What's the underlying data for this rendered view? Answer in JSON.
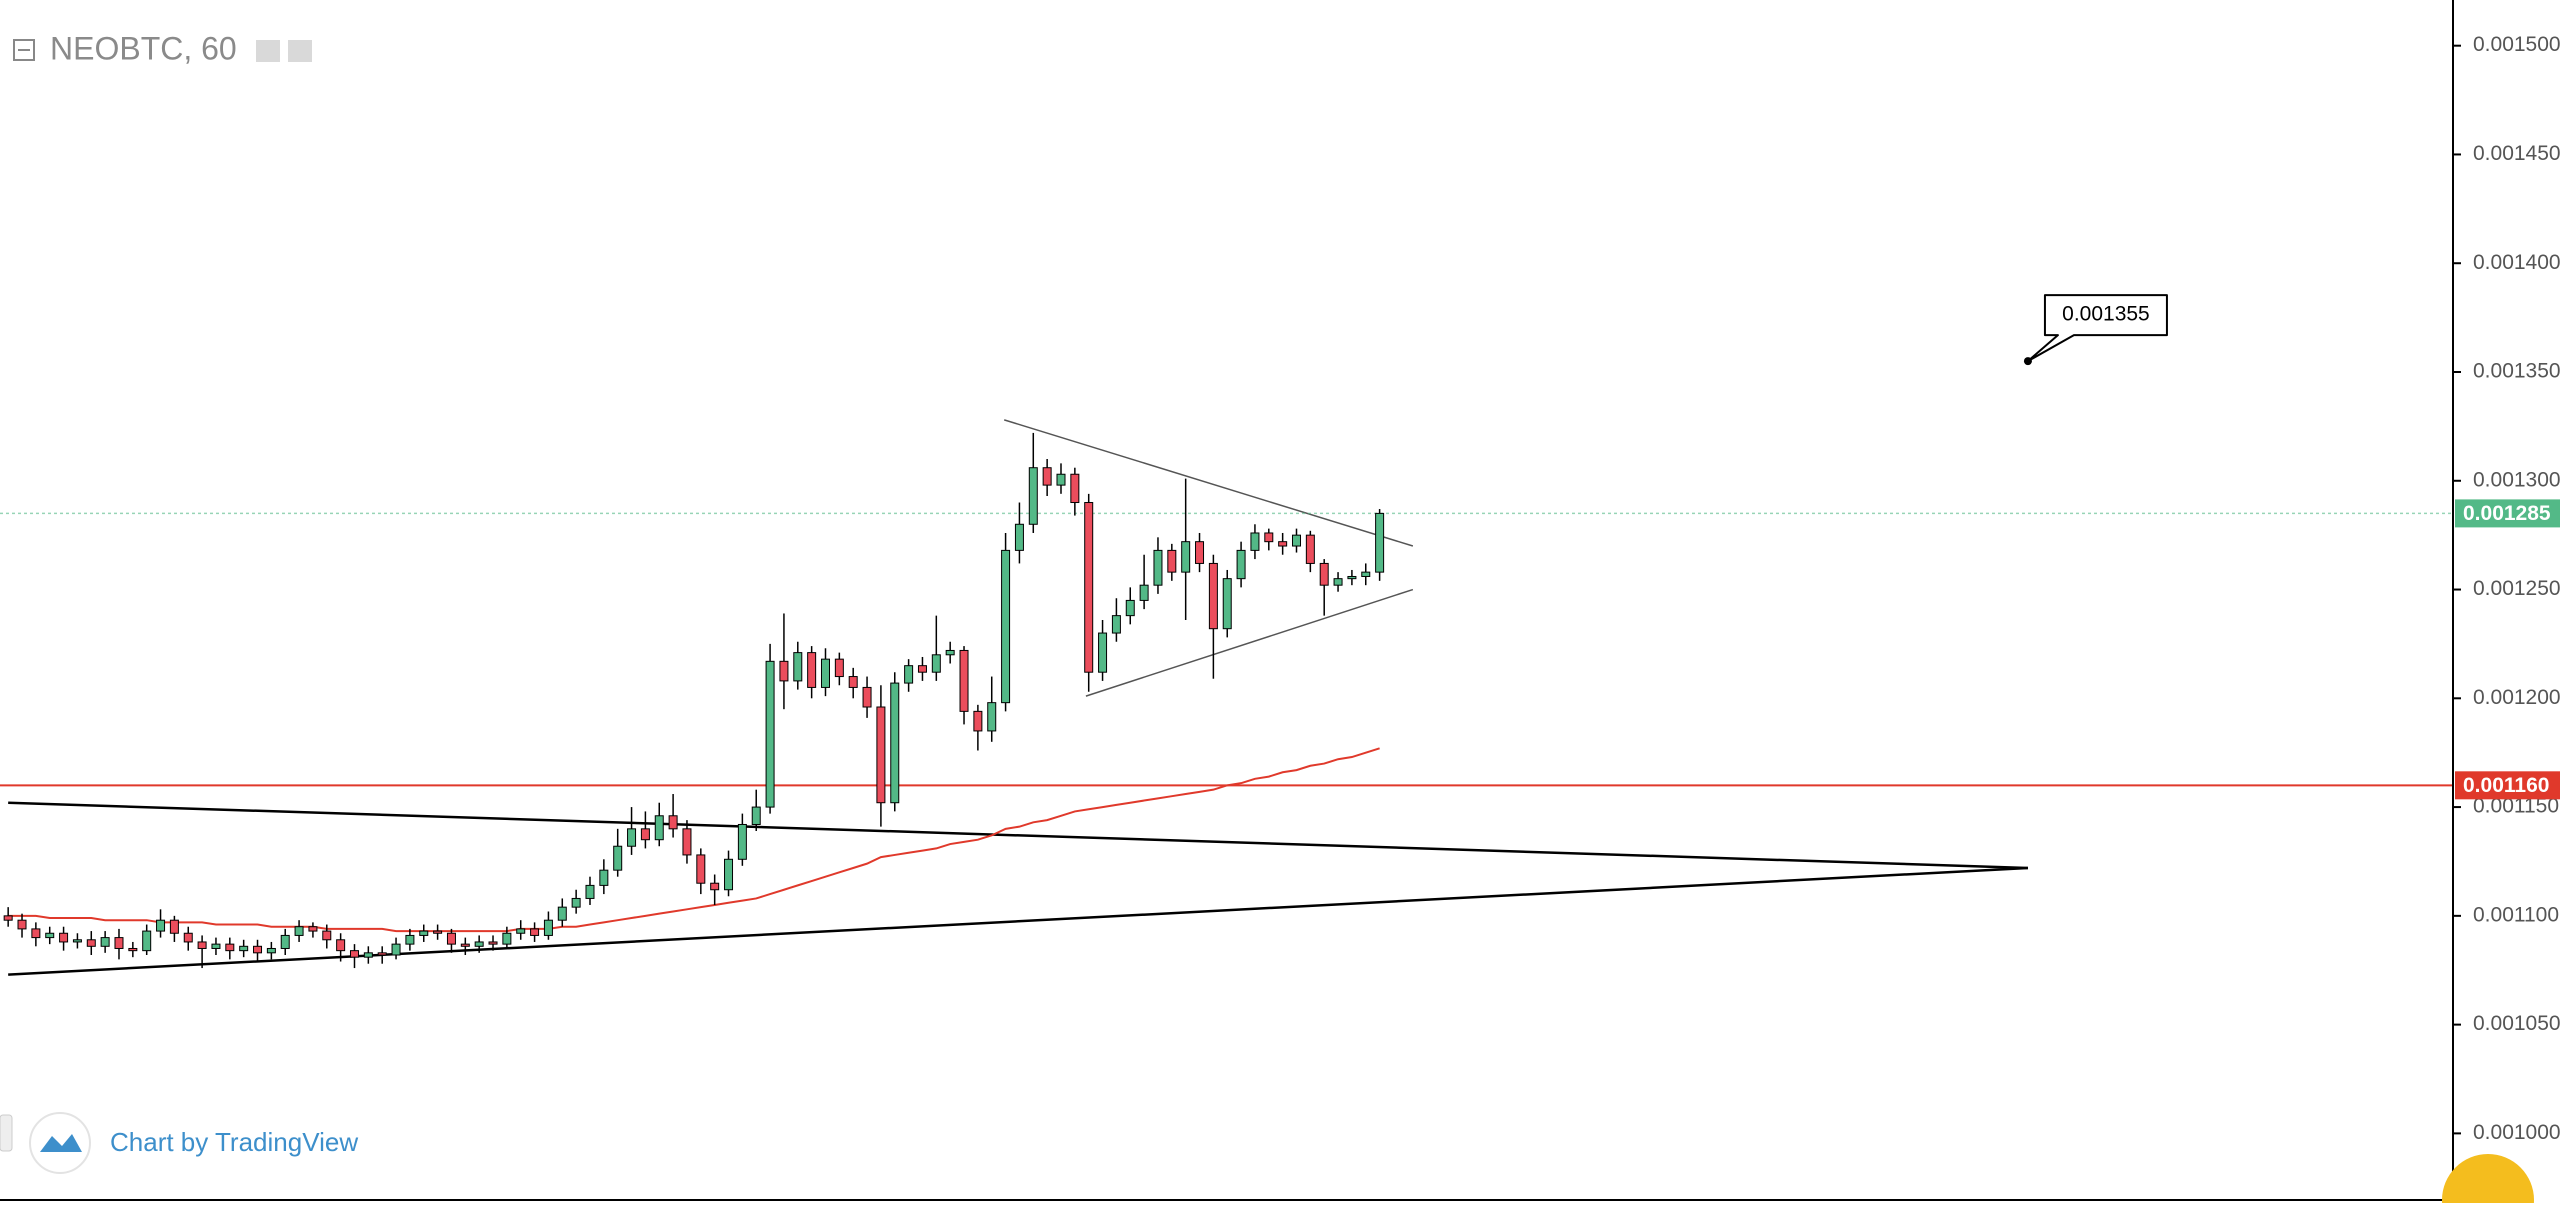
{
  "chart_data": {
    "type": "candlestick",
    "title": "NEOBTC, 60",
    "attribution": "Chart by TradingView",
    "up_color": "#53b987",
    "down_color": "#eb4d5c",
    "ylim": [
      0.000968,
      0.001521
    ],
    "yticks": [
      {
        "value": 0.001,
        "label": "0.001000"
      },
      {
        "value": 0.00105,
        "label": "0.001050"
      },
      {
        "value": 0.0011,
        "label": "0.001100"
      },
      {
        "value": 0.00115,
        "label": "0.001150"
      },
      {
        "value": 0.0012,
        "label": "0.001200"
      },
      {
        "value": 0.00125,
        "label": "0.001250"
      },
      {
        "value": 0.0013,
        "label": "0.001300"
      },
      {
        "value": 0.00135,
        "label": "0.001350"
      },
      {
        "value": 0.0014,
        "label": "0.001400"
      },
      {
        "value": 0.00145,
        "label": "0.001450"
      },
      {
        "value": 0.0015,
        "label": "0.001500"
      }
    ],
    "open": [
      0.0011,
      0.001098,
      0.001094,
      0.00109,
      0.001092,
      0.001088,
      0.001089,
      0.001086,
      0.00109,
      0.001085,
      0.001084,
      0.001093,
      0.001098,
      0.001092,
      0.001088,
      0.001085,
      0.001087,
      0.001084,
      0.001086,
      0.001083,
      0.001085,
      0.001091,
      0.001095,
      0.001093,
      0.001089,
      0.001084,
      0.001081,
      0.001083,
      0.001082,
      0.001087,
      0.001091,
      0.001093,
      0.001092,
      0.001087,
      0.001086,
      0.001088,
      0.001087,
      0.001092,
      0.001094,
      0.001091,
      0.001098,
      0.001104,
      0.001108,
      0.001114,
      0.001121,
      0.001132,
      0.00114,
      0.001135,
      0.001146,
      0.00114,
      0.001128,
      0.001115,
      0.001112,
      0.001126,
      0.001142,
      0.00115,
      0.001217,
      0.001208,
      0.001221,
      0.001205,
      0.001218,
      0.00121,
      0.001205,
      0.001196,
      0.001152,
      0.001207,
      0.001215,
      0.001212,
      0.00122,
      0.001222,
      0.001194,
      0.001185,
      0.001198,
      0.001268,
      0.00128,
      0.001306,
      0.001298,
      0.001303,
      0.00129,
      0.001212,
      0.00123,
      0.001238,
      0.001245,
      0.001252,
      0.001268,
      0.001258,
      0.001272,
      0.001262,
      0.001232,
      0.001255,
      0.001268,
      0.001276,
      0.001272,
      0.00127,
      0.001275,
      0.001262,
      0.001252,
      0.001255,
      0.001256,
      0.001258
    ],
    "high": [
      0.001104,
      0.001101,
      0.001097,
      0.001095,
      0.001095,
      0.001092,
      0.001093,
      0.001093,
      0.001094,
      0.001088,
      0.001096,
      0.001103,
      0.0011,
      0.001095,
      0.001091,
      0.00109,
      0.00109,
      0.001089,
      0.001089,
      0.001088,
      0.001094,
      0.001098,
      0.001097,
      0.001096,
      0.001092,
      0.001087,
      0.001086,
      0.001086,
      0.00109,
      0.001094,
      0.001096,
      0.001096,
      0.001094,
      0.00109,
      0.001091,
      0.001091,
      0.001095,
      0.001098,
      0.001097,
      0.001102,
      0.001108,
      0.001112,
      0.001118,
      0.001126,
      0.00114,
      0.00115,
      0.001148,
      0.001152,
      0.001156,
      0.001144,
      0.001131,
      0.001119,
      0.00113,
      0.001147,
      0.001158,
      0.001225,
      0.001239,
      0.001226,
      0.001224,
      0.001223,
      0.001221,
      0.001214,
      0.00121,
      0.001206,
      0.001212,
      0.001218,
      0.001219,
      0.001238,
      0.001226,
      0.001224,
      0.001197,
      0.00121,
      0.001276,
      0.00129,
      0.001322,
      0.00131,
      0.001308,
      0.001306,
      0.001294,
      0.001236,
      0.001246,
      0.001251,
      0.001266,
      0.001274,
      0.001271,
      0.001301,
      0.001276,
      0.001266,
      0.001259,
      0.001272,
      0.00128,
      0.001278,
      0.001276,
      0.001278,
      0.001277,
      0.001264,
      0.001258,
      0.001259,
      0.001262,
      0.001287
    ],
    "low": [
      0.001095,
      0.00109,
      0.001086,
      0.001087,
      0.001084,
      0.001085,
      0.001082,
      0.001083,
      0.00108,
      0.001081,
      0.001082,
      0.00109,
      0.001088,
      0.001084,
      0.001076,
      0.001082,
      0.00108,
      0.001081,
      0.001079,
      0.00108,
      0.001082,
      0.001088,
      0.00109,
      0.001085,
      0.001079,
      0.001076,
      0.001078,
      0.001078,
      0.00108,
      0.001084,
      0.001088,
      0.001089,
      0.001083,
      0.001082,
      0.001083,
      0.001084,
      0.001085,
      0.001089,
      0.001088,
      0.001089,
      0.001095,
      0.001101,
      0.001105,
      0.00111,
      0.001118,
      0.001128,
      0.001131,
      0.001132,
      0.001136,
      0.001124,
      0.00111,
      0.001105,
      0.001109,
      0.001123,
      0.001139,
      0.001147,
      0.001195,
      0.001204,
      0.0012,
      0.001201,
      0.001206,
      0.0012,
      0.001191,
      0.001141,
      0.001148,
      0.001203,
      0.001208,
      0.001208,
      0.001216,
      0.001188,
      0.001176,
      0.00118,
      0.001194,
      0.001262,
      0.001276,
      0.001293,
      0.001294,
      0.001284,
      0.001203,
      0.001208,
      0.001226,
      0.001234,
      0.001241,
      0.001248,
      0.001254,
      0.001236,
      0.001258,
      0.001209,
      0.001228,
      0.001251,
      0.001264,
      0.001268,
      0.001266,
      0.001267,
      0.001258,
      0.001238,
      0.001249,
      0.001252,
      0.001252,
      0.001254
    ],
    "close": [
      0.001098,
      0.001094,
      0.00109,
      0.001092,
      0.001088,
      0.001089,
      0.001086,
      0.00109,
      0.001085,
      0.001084,
      0.001093,
      0.001098,
      0.001092,
      0.001088,
      0.001085,
      0.001087,
      0.001084,
      0.001086,
      0.001083,
      0.001085,
      0.001091,
      0.001095,
      0.001093,
      0.001089,
      0.001084,
      0.001081,
      0.001083,
      0.001082,
      0.001087,
      0.001091,
      0.001093,
      0.001092,
      0.001087,
      0.001086,
      0.001088,
      0.001087,
      0.001092,
      0.001094,
      0.001091,
      0.001098,
      0.001104,
      0.001108,
      0.001114,
      0.001121,
      0.001132,
      0.00114,
      0.001135,
      0.001146,
      0.00114,
      0.001128,
      0.001115,
      0.001112,
      0.001126,
      0.001142,
      0.00115,
      0.001217,
      0.001208,
      0.001221,
      0.001205,
      0.001218,
      0.00121,
      0.001205,
      0.001196,
      0.001152,
      0.001207,
      0.001215,
      0.001212,
      0.00122,
      0.001222,
      0.001194,
      0.001185,
      0.001198,
      0.001268,
      0.00128,
      0.001306,
      0.001298,
      0.001303,
      0.00129,
      0.001212,
      0.00123,
      0.001238,
      0.001245,
      0.001252,
      0.001268,
      0.001258,
      0.001272,
      0.001262,
      0.001232,
      0.001255,
      0.001268,
      0.001276,
      0.001272,
      0.00127,
      0.001275,
      0.001262,
      0.001252,
      0.001255,
      0.001256,
      0.001258,
      0.001285
    ],
    "moving_average": {
      "color": "#e0392b",
      "values": [
        0.0011,
        0.0011,
        0.0011,
        0.001099,
        0.001099,
        0.001099,
        0.001099,
        0.001098,
        0.001098,
        0.001098,
        0.001098,
        0.001097,
        0.001097,
        0.001097,
        0.001097,
        0.001096,
        0.001096,
        0.001096,
        0.001096,
        0.001095,
        0.001095,
        0.001095,
        0.001095,
        0.001094,
        0.001094,
        0.001094,
        0.001094,
        0.001094,
        0.001093,
        0.001093,
        0.001093,
        0.001093,
        0.001093,
        0.001093,
        0.001093,
        0.001093,
        0.001093,
        0.001094,
        0.001094,
        0.001094,
        0.001095,
        0.001095,
        0.001096,
        0.001097,
        0.001098,
        0.001099,
        0.0011,
        0.001101,
        0.001102,
        0.001103,
        0.001104,
        0.001105,
        0.001106,
        0.001107,
        0.001108,
        0.00111,
        0.001112,
        0.001114,
        0.001116,
        0.001118,
        0.00112,
        0.001122,
        0.001124,
        0.001127,
        0.001128,
        0.001129,
        0.00113,
        0.001131,
        0.001133,
        0.001134,
        0.001135,
        0.001137,
        0.00114,
        0.001141,
        0.001143,
        0.001144,
        0.001146,
        0.001148,
        0.001149,
        0.00115,
        0.001151,
        0.001152,
        0.001153,
        0.001154,
        0.001155,
        0.001156,
        0.001157,
        0.001158,
        0.00116,
        0.001161,
        0.001163,
        0.001164,
        0.001166,
        0.001167,
        0.001169,
        0.00117,
        0.001172,
        0.001173,
        0.001175,
        0.001177
      ]
    },
    "trendlines": [
      {
        "x": [
          0,
          145.8
        ],
        "y": [
          0.001152,
          0.001122
        ],
        "color": "#000000"
      },
      {
        "x": [
          0,
          145.8
        ],
        "y": [
          0.001073,
          0.001122
        ],
        "color": "#000000"
      },
      {
        "x": [
          71.9,
          101.4
        ],
        "y": [
          0.001328,
          0.00127
        ],
        "color": "#555555"
      },
      {
        "x": [
          77.8,
          101.4
        ],
        "y": [
          0.001201,
          0.00125
        ],
        "color": "#555555"
      }
    ],
    "hlines": [
      {
        "value": 0.00116,
        "label": "0.001160",
        "color": "#e0392b"
      },
      {
        "value": 0.001285,
        "label": "0.001285",
        "color": "#53b987"
      }
    ],
    "callout": {
      "x": 145.8,
      "value": 0.001355,
      "label": "0.001355"
    }
  }
}
